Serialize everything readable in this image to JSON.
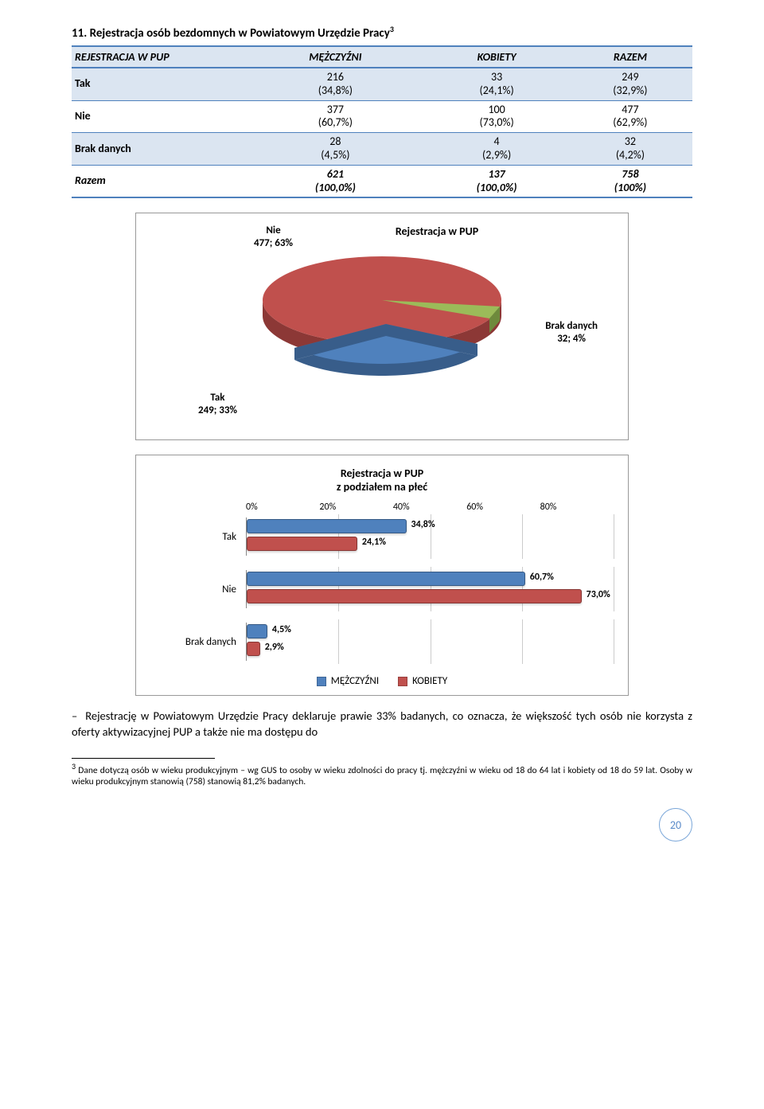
{
  "section": {
    "title": "11. Rejestracja osób bezdomnych w Powiatowym Urzędzie Pracy",
    "footnote_mark": "3"
  },
  "table": {
    "headers": [
      "REJESTRACJA W PUP",
      "MĘŻCZYŹNI",
      "KOBIETY",
      "RAZEM"
    ],
    "rows": [
      {
        "label": "Tak",
        "m": "216",
        "mp": "(34,8%)",
        "k": "33",
        "kp": "(24,1%)",
        "r": "249",
        "rp": "(32,9%)",
        "hl": true
      },
      {
        "label": "Nie",
        "m": "377",
        "mp": "(60,7%)",
        "k": "100",
        "kp": "(73,0%)",
        "r": "477",
        "rp": "(62,9%)",
        "hl": false
      },
      {
        "label": "Brak danych",
        "m": "28",
        "mp": "(4,5%)",
        "k": "4",
        "kp": "(2,9%)",
        "r": "32",
        "rp": "(4,2%)",
        "hl": true
      },
      {
        "label": "Razem",
        "m": "621",
        "mp": "(100,0%)",
        "k": "137",
        "kp": "(100,0%)",
        "r": "758",
        "rp": "(100%)",
        "hl": false,
        "total": true
      }
    ]
  },
  "pie": {
    "title": "Rejestracja w PUP",
    "labels": {
      "nie": "Nie\n477; 63%",
      "brak": "Brak danych\n32; 4%",
      "tak": "Tak\n249; 33%"
    },
    "colors": {
      "nie": "#c0504d",
      "brak": "#9bbb59",
      "tak": "#4f81bd",
      "nie_side": "#8c3836",
      "brak_side": "#6e8a3c",
      "tak_side": "#385d8a"
    }
  },
  "bar": {
    "title": "Rejestracja w PUP\nz podziałem na płeć",
    "axis": [
      "0%",
      "20%",
      "40%",
      "60%",
      "80%"
    ],
    "xmax": 80,
    "colors": {
      "m": "#4f81bd",
      "k": "#c0504d"
    },
    "categories": [
      {
        "label": "Tak",
        "m": 34.8,
        "m_txt": "34,8%",
        "k": 24.1,
        "k_txt": "24,1%"
      },
      {
        "label": "Nie",
        "m": 60.7,
        "m_txt": "60,7%",
        "k": 73.0,
        "k_txt": "73,0%"
      },
      {
        "label": "Brak danych",
        "m": 4.5,
        "m_txt": "4,5%",
        "k": 2.9,
        "k_txt": "2,9%"
      }
    ],
    "legend": [
      "MĘŻCZYŹNI",
      "KOBIETY"
    ]
  },
  "paragraph": "Rejestrację w Powiatowym Urzędzie Pracy deklaruje prawie 33% badanych, co oznacza, że większość tych osób nie korzysta z oferty aktywizacyjnej PUP a także nie ma dostępu do",
  "footnote": "Dane dotyczą osób w wieku produkcyjnym – wg GUS to osoby w wieku zdolności do pracy tj. mężczyźni w wieku od 18 do 64 lat i kobiety od 18 do 59 lat. Osoby w wieku produkcyjnym stanowią (758) stanowią 81,2% badanych.",
  "footnote_num": "3",
  "page": "20"
}
